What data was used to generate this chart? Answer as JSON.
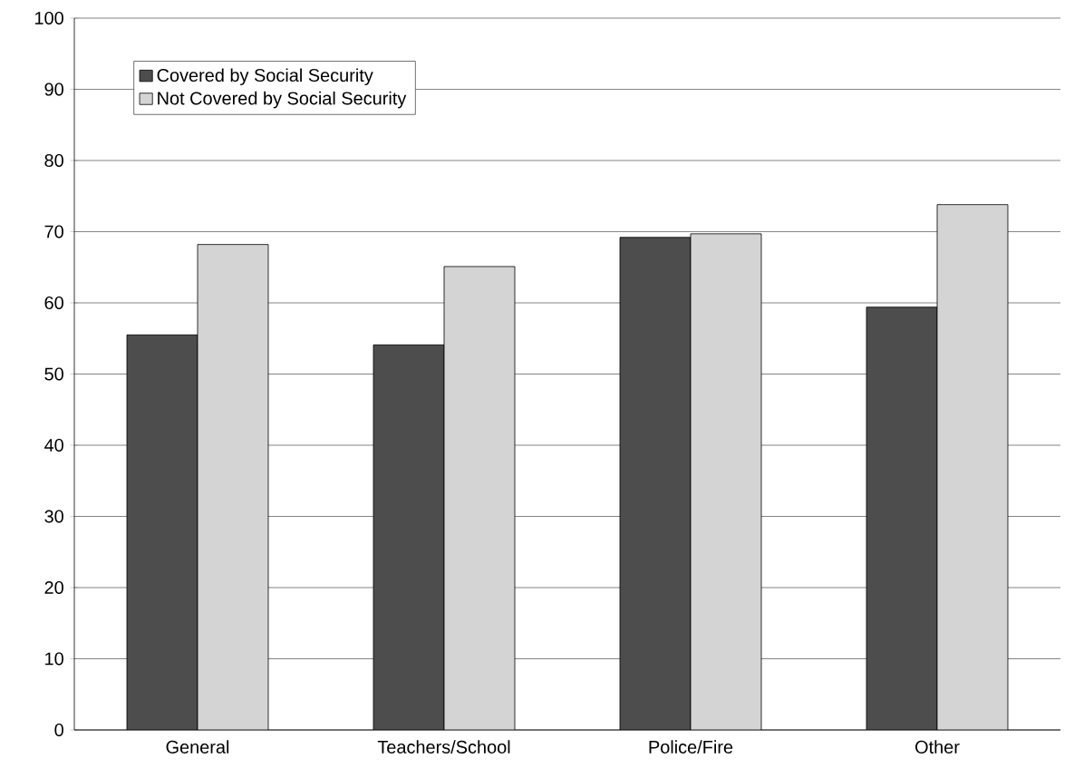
{
  "chart_data": {
    "type": "bar",
    "categories": [
      "General",
      "Teachers/School",
      "Police/Fire",
      "Other"
    ],
    "series": [
      {
        "name": "Covered by Social Security",
        "color": "#4d4d4d",
        "values": [
          55.5,
          54.1,
          69.2,
          59.4
        ]
      },
      {
        "name": "Not Covered by Social Security",
        "color": "#d4d4d4",
        "values": [
          68.2,
          65.1,
          69.7,
          73.8
        ]
      }
    ],
    "ylim": [
      0,
      100
    ],
    "yticks": [
      0,
      10,
      20,
      30,
      40,
      50,
      60,
      70,
      80,
      90,
      100
    ],
    "grid": "y",
    "legend": "top left"
  }
}
